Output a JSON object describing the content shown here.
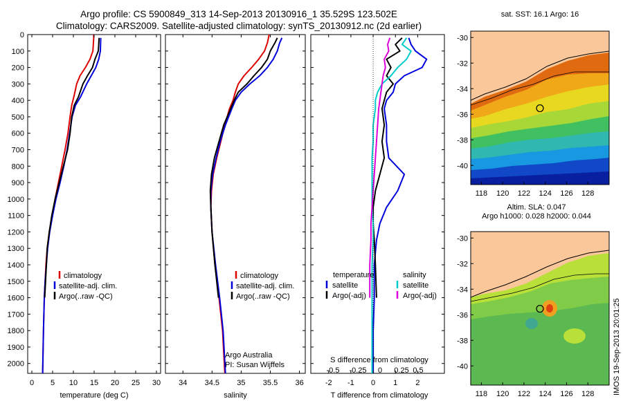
{
  "header": {
    "line1": "Argo profile: CS 5900849_313 14-Sep-2013 20130916_1 35.529S 123.502E",
    "line2": "Climatology: CARS2009. Satellite-adjusted climatology: synTS_20130912.nc (2d earlier)"
  },
  "colors": {
    "climatology": "#dd0000",
    "satellite": "#0000dd",
    "argo": "#000000",
    "sat_salinity": "#00cccc",
    "argo_salinity": "#dd00dd",
    "land": "#f9c79a"
  },
  "yaxis": {
    "ticks": [
      0,
      100,
      200,
      300,
      400,
      500,
      600,
      700,
      800,
      900,
      1000,
      1100,
      1200,
      1300,
      1400,
      1500,
      1600,
      1700,
      1800,
      1900,
      2000
    ],
    "ylim": [
      0,
      2060
    ]
  },
  "chart_data": [
    {
      "id": "temperature",
      "type": "line",
      "xlabel": "temperature (deg C)",
      "xlim": [
        -1,
        31
      ],
      "xticks": [
        0,
        5,
        10,
        15,
        20,
        25,
        30
      ],
      "legend": [
        "climatology",
        "satellite-adj. clim.",
        "Argo(..raw -QC)"
      ],
      "series": [
        {
          "name": "climatology",
          "color": "#dd0000",
          "points": [
            [
              14.9,
              0
            ],
            [
              14.9,
              20
            ],
            [
              14.7,
              100
            ],
            [
              14.0,
              150
            ],
            [
              12.9,
              200
            ],
            [
              11.6,
              250
            ],
            [
              10.8,
              300
            ],
            [
              10.1,
              380
            ],
            [
              9.6,
              430
            ],
            [
              9.2,
              500
            ],
            [
              8.7,
              600
            ],
            [
              8.0,
              700
            ],
            [
              7.2,
              800
            ],
            [
              6.4,
              900
            ],
            [
              5.6,
              1000
            ],
            [
              4.9,
              1100
            ],
            [
              4.2,
              1200
            ],
            [
              3.7,
              1300
            ],
            [
              3.4,
              1400
            ],
            [
              3.2,
              1500
            ],
            [
              3.0,
              1600
            ],
            [
              2.8,
              1800
            ],
            [
              2.6,
              2060
            ]
          ]
        },
        {
          "name": "satellite-adj. clim.",
          "color": "#0000dd",
          "points": [
            [
              16.6,
              20
            ],
            [
              16.5,
              100
            ],
            [
              16.1,
              150
            ],
            [
              15.4,
              200
            ],
            [
              14.3,
              250
            ],
            [
              13.2,
              300
            ],
            [
              11.7,
              380
            ],
            [
              10.5,
              430
            ],
            [
              9.7,
              500
            ],
            [
              9.1,
              600
            ],
            [
              8.5,
              700
            ],
            [
              7.7,
              800
            ],
            [
              6.8,
              900
            ],
            [
              5.8,
              1000
            ],
            [
              5.0,
              1100
            ],
            [
              4.3,
              1200
            ],
            [
              3.8,
              1300
            ],
            [
              3.5,
              1400
            ],
            [
              3.2,
              1500
            ],
            [
              3.0,
              1600
            ],
            [
              2.8,
              1800
            ],
            [
              2.6,
              2060
            ]
          ]
        },
        {
          "name": "Argo(..raw -QC)",
          "color": "#000000",
          "points": [
            [
              16.2,
              20
            ],
            [
              16.0,
              100
            ],
            [
              15.2,
              150
            ],
            [
              14.6,
              200
            ],
            [
              13.4,
              250
            ],
            [
              12.3,
              300
            ],
            [
              11.2,
              380
            ],
            [
              10.2,
              430
            ],
            [
              9.6,
              500
            ],
            [
              9.2,
              600
            ],
            [
              8.6,
              700
            ],
            [
              7.6,
              800
            ],
            [
              6.6,
              900
            ],
            [
              5.6,
              1000
            ],
            [
              4.8,
              1100
            ],
            [
              4.2,
              1200
            ],
            [
              3.7,
              1300
            ],
            [
              3.5,
              1400
            ],
            [
              3.3,
              1500
            ],
            [
              3.1,
              1600
            ]
          ]
        }
      ]
    },
    {
      "id": "salinity",
      "type": "line",
      "xlabel": "salinity",
      "xlim": [
        33.7,
        36.1
      ],
      "xticks": [
        34,
        34.5,
        35,
        35.5,
        36
      ],
      "xticklabels": [
        "34",
        "34.5",
        "35",
        "35.5",
        "36"
      ],
      "legend": [
        "climatology",
        "satellite-adj. clim.",
        "Argo(..raw -QC)"
      ],
      "annotations": [
        "Argo Australia",
        "PI: Susan Wijffels"
      ],
      "series": [
        {
          "name": "climatology",
          "color": "#dd0000",
          "points": [
            [
              35.48,
              0
            ],
            [
              35.45,
              50
            ],
            [
              35.4,
              100
            ],
            [
              35.3,
              150
            ],
            [
              35.18,
              200
            ],
            [
              35.05,
              250
            ],
            [
              34.95,
              300
            ],
            [
              34.9,
              350
            ],
            [
              34.86,
              400
            ],
            [
              34.8,
              450
            ],
            [
              34.72,
              550
            ],
            [
              34.65,
              650
            ],
            [
              34.58,
              750
            ],
            [
              34.52,
              850
            ],
            [
              34.49,
              950
            ],
            [
              34.48,
              1050
            ],
            [
              34.5,
              1200
            ],
            [
              34.55,
              1400
            ],
            [
              34.62,
              1600
            ],
            [
              34.68,
              1800
            ],
            [
              34.72,
              2060
            ]
          ]
        },
        {
          "name": "satellite-adj. clim.",
          "color": "#0000dd",
          "points": [
            [
              35.7,
              20
            ],
            [
              35.66,
              50
            ],
            [
              35.62,
              100
            ],
            [
              35.55,
              150
            ],
            [
              35.45,
              200
            ],
            [
              35.32,
              250
            ],
            [
              35.15,
              300
            ],
            [
              35.0,
              350
            ],
            [
              34.9,
              400
            ],
            [
              34.84,
              450
            ],
            [
              34.73,
              550
            ],
            [
              34.64,
              650
            ],
            [
              34.57,
              750
            ],
            [
              34.51,
              850
            ],
            [
              34.48,
              950
            ],
            [
              34.48,
              1050
            ],
            [
              34.5,
              1200
            ],
            [
              34.56,
              1400
            ],
            [
              34.63,
              1600
            ],
            [
              34.69,
              1800
            ],
            [
              34.73,
              2060
            ]
          ]
        },
        {
          "name": "Argo(..raw -QC)",
          "color": "#000000",
          "points": [
            [
              35.62,
              20
            ],
            [
              35.58,
              50
            ],
            [
              35.5,
              100
            ],
            [
              35.45,
              150
            ],
            [
              35.35,
              200
            ],
            [
              35.22,
              250
            ],
            [
              35.1,
              300
            ],
            [
              34.95,
              350
            ],
            [
              34.88,
              400
            ],
            [
              34.82,
              450
            ],
            [
              34.7,
              550
            ],
            [
              34.62,
              650
            ],
            [
              34.54,
              750
            ],
            [
              34.49,
              850
            ],
            [
              34.47,
              950
            ],
            [
              34.48,
              1050
            ],
            [
              34.5,
              1200
            ],
            [
              34.55,
              1400
            ],
            [
              34.61,
              1600
            ]
          ]
        }
      ]
    },
    {
      "id": "difference",
      "type": "line",
      "xlabel": "T difference from climatology",
      "xlim": [
        -2.8,
        3.2
      ],
      "xticks": [
        -2,
        -1,
        0,
        1,
        2
      ],
      "top_axis_label": "S difference from climatology",
      "top_ticks": [
        "-0.5",
        "-0.25",
        "0",
        "0.25",
        "0.5"
      ],
      "legend_left_title": "temperature",
      "legend_left": [
        "satellite",
        "Argo(-adj)"
      ],
      "legend_right_title": "salinity",
      "legend_right": [
        "satellite",
        "Argo(-adj)"
      ],
      "series": [
        {
          "name": "temperature satellite",
          "color": "#0000dd",
          "points": [
            [
              1.6,
              20
            ],
            [
              1.7,
              60
            ],
            [
              1.9,
              100
            ],
            [
              2.4,
              150
            ],
            [
              2.2,
              200
            ],
            [
              1.4,
              250
            ],
            [
              1.0,
              300
            ],
            [
              0.9,
              350
            ],
            [
              0.6,
              400
            ],
            [
              0.5,
              450
            ],
            [
              0.6,
              550
            ],
            [
              0.6,
              650
            ],
            [
              0.7,
              750
            ],
            [
              1.4,
              850
            ],
            [
              1.1,
              950
            ],
            [
              0.6,
              1050
            ],
            [
              0.3,
              1150
            ],
            [
              0.15,
              1250
            ],
            [
              0.05,
              1400
            ],
            [
              0.05,
              1600
            ],
            [
              0.0,
              1800
            ],
            [
              0.0,
              2060
            ]
          ]
        },
        {
          "name": "temperature Argo(-adj)",
          "color": "#000000",
          "points": [
            [
              1.3,
              20
            ],
            [
              1.0,
              60
            ],
            [
              1.2,
              100
            ],
            [
              0.6,
              150
            ],
            [
              0.8,
              200
            ],
            [
              0.6,
              250
            ],
            [
              0.9,
              300
            ],
            [
              0.6,
              350
            ],
            [
              0.5,
              400
            ],
            [
              0.4,
              450
            ],
            [
              0.5,
              550
            ],
            [
              0.4,
              650
            ],
            [
              0.5,
              750
            ],
            [
              0.3,
              850
            ],
            [
              0.1,
              950
            ],
            [
              0.0,
              1050
            ],
            [
              0.0,
              1150
            ],
            [
              0.05,
              1250
            ],
            [
              0.1,
              1400
            ],
            [
              0.15,
              1600
            ]
          ]
        },
        {
          "name": "salinity satellite",
          "color": "#00cccc",
          "points": [
            [
              1.5,
              20
            ],
            [
              1.3,
              60
            ],
            [
              1.7,
              100
            ],
            [
              1.5,
              150
            ],
            [
              1.1,
              200
            ],
            [
              0.8,
              250
            ],
            [
              0.4,
              300
            ],
            [
              0.2,
              350
            ],
            [
              0.1,
              400
            ],
            [
              0.1,
              450
            ],
            [
              0.0,
              550
            ],
            [
              0.0,
              650
            ],
            [
              -0.05,
              750
            ],
            [
              -0.05,
              850
            ],
            [
              -0.05,
              950
            ],
            [
              -0.05,
              1050
            ],
            [
              0.0,
              1150
            ],
            [
              0.0,
              1250
            ],
            [
              -0.05,
              1400
            ],
            [
              -0.05,
              1600
            ],
            [
              -0.05,
              1800
            ],
            [
              -0.05,
              2060
            ]
          ]
        },
        {
          "name": "salinity Argo(-adj)",
          "color": "#dd00dd",
          "points": [
            [
              0.75,
              20
            ],
            [
              0.65,
              60
            ],
            [
              0.7,
              100
            ],
            [
              0.5,
              150
            ],
            [
              0.55,
              200
            ],
            [
              0.45,
              250
            ],
            [
              0.4,
              300
            ],
            [
              0.35,
              350
            ],
            [
              0.3,
              400
            ],
            [
              0.25,
              450
            ],
            [
              0.2,
              550
            ],
            [
              0.15,
              650
            ],
            [
              0.1,
              750
            ],
            [
              0.05,
              850
            ],
            [
              0.0,
              950
            ],
            [
              -0.05,
              1050
            ],
            [
              -0.1,
              1150
            ],
            [
              -0.1,
              1250
            ],
            [
              -0.15,
              1400
            ],
            [
              -0.15,
              1600
            ]
          ]
        }
      ]
    },
    {
      "id": "sst_map",
      "type": "heatmap",
      "title": "sat. SST: 16.1  Argo: 16",
      "lon_ticks": [
        118,
        120,
        122,
        124,
        126,
        128
      ],
      "lat_ticks": [
        -30,
        -32,
        -34,
        -36,
        -38,
        -40
      ],
      "marker": {
        "lon": 123.5,
        "lat": -35.53
      }
    },
    {
      "id": "sla_map",
      "type": "heatmap",
      "title_line1": "Altim. SLA: 0.047",
      "title_line2": "Argo h1000: 0.028 h2000: 0.044",
      "lon_ticks": [
        118,
        120,
        122,
        124,
        126,
        128
      ],
      "lat_ticks": [
        -30,
        -32,
        -34,
        -36,
        -38,
        -40
      ],
      "marker": {
        "lon": 123.5,
        "lat": -35.53
      }
    }
  ],
  "watermark": "IMOS 19-Sep-2013 20:01:25"
}
